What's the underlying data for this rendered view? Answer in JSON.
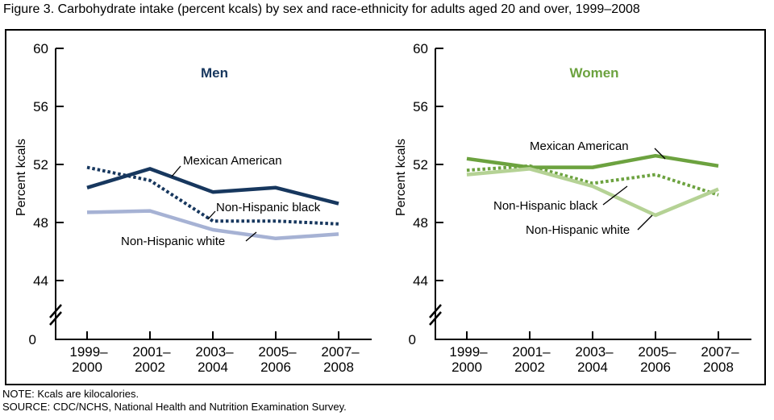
{
  "figure": {
    "title": "Figure 3. Carbohydrate intake (percent kcals) by sex and race-ethnicity for adults aged 20 and over, 1999–2008",
    "note": "NOTE: Kcals are kilocalories.",
    "source": "SOURCE: CDC/NCHS, National Health and Nutrition Examination Survey."
  },
  "chart_data": [
    {
      "type": "line",
      "panel": "left",
      "title": "Men",
      "title_color": "#17375E",
      "ylabel": "Percent kcals",
      "categories": [
        "1999–2000",
        "2001–2002",
        "2003–2004",
        "2005–2006",
        "2007–2008"
      ],
      "yticks": [
        60,
        56,
        52,
        48,
        44
      ],
      "y_baseline_tick": 0,
      "axis_break": true,
      "ylim": [
        44,
        60
      ],
      "grid": false,
      "legend": "inline-labels",
      "series": [
        {
          "name": "Mexican American",
          "color": "#17375E",
          "style": "solid",
          "values": [
            50.4,
            51.7,
            50.1,
            50.4,
            49.3
          ]
        },
        {
          "name": "Non-Hispanic black",
          "color": "#17375E",
          "style": "dotted",
          "values": [
            51.8,
            50.9,
            48.1,
            48.1,
            47.9
          ]
        },
        {
          "name": "Non-Hispanic white",
          "color": "#A6B2D4",
          "style": "solid",
          "values": [
            48.7,
            48.8,
            47.5,
            46.9,
            47.2
          ]
        }
      ]
    },
    {
      "type": "line",
      "panel": "right",
      "title": "Women",
      "title_color": "#6CA23F",
      "ylabel": "Percent kcals",
      "categories": [
        "1999–2000",
        "2001–2002",
        "2003–2004",
        "2005–2006",
        "2007–2008"
      ],
      "yticks": [
        60,
        56,
        52,
        48,
        44
      ],
      "y_baseline_tick": 0,
      "axis_break": true,
      "ylim": [
        44,
        60
      ],
      "grid": false,
      "legend": "inline-labels",
      "series": [
        {
          "name": "Mexican American",
          "color": "#6CA23F",
          "style": "solid",
          "values": [
            52.4,
            51.8,
            51.8,
            52.6,
            51.9
          ]
        },
        {
          "name": "Non-Hispanic black",
          "color": "#6CA23F",
          "style": "dotted",
          "values": [
            51.6,
            51.9,
            50.7,
            51.3,
            49.9
          ]
        },
        {
          "name": "Non-Hispanic white",
          "color": "#B5D295",
          "style": "solid",
          "values": [
            51.3,
            51.7,
            50.5,
            48.5,
            50.3
          ]
        }
      ]
    }
  ]
}
